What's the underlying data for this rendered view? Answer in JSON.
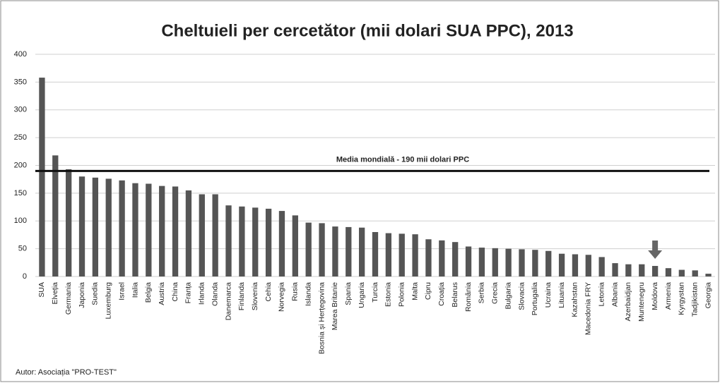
{
  "chart_data": {
    "type": "bar",
    "title": "Cheltuieli per cercetător (mii dolari SUA PPC), 2013",
    "categories": [
      "SUA",
      "Elveția",
      "Germania",
      "Japonia",
      "Suedia",
      "Luxemburg",
      "Israel",
      "Italia",
      "Belgia",
      "Austria",
      "China",
      "Franța",
      "Irlanda",
      "Olanda",
      "Danemarca",
      "Finlanda",
      "Slovenia",
      "Cehia",
      "Norvegia",
      "Rusia",
      "Islanda",
      "Bosnia și Herțegovina",
      "Marea Britanie",
      "Spania",
      "Ungaria",
      "Turcia",
      "Estonia",
      "Polonia",
      "Malta",
      "Cipru",
      "Croația",
      "Belarus",
      "România",
      "Serbia",
      "Grecia",
      "Bulgaria",
      "Slovacia",
      "Portugalia",
      "Ucraina",
      "Lituania",
      "Kazahstan",
      "Macedonia FRY",
      "Letonia",
      "Albania",
      "Azerbaidjan",
      "Muntenegru",
      "Moldova",
      "Armenia",
      "Kyrgystan",
      "Tadjikistan",
      "Georgia"
    ],
    "values": [
      358,
      218,
      193,
      180,
      178,
      176,
      173,
      168,
      167,
      163,
      162,
      155,
      148,
      148,
      128,
      126,
      124,
      122,
      118,
      110,
      97,
      96,
      90,
      89,
      88,
      80,
      78,
      77,
      76,
      67,
      65,
      62,
      54,
      52,
      51,
      50,
      49,
      48,
      46,
      41,
      40,
      39,
      35,
      24,
      22,
      22,
      19,
      15,
      12,
      11,
      5
    ],
    "color": "#555555",
    "ylim": [
      0,
      400
    ],
    "yticks": [
      0,
      50,
      100,
      150,
      200,
      250,
      300,
      350,
      400
    ],
    "grid": true,
    "reference_line": {
      "value": 190,
      "label": "Media mondială - 190 mii dolari PPC"
    },
    "footnote": "Autor: Asociația \"PRO-TEST\""
  }
}
